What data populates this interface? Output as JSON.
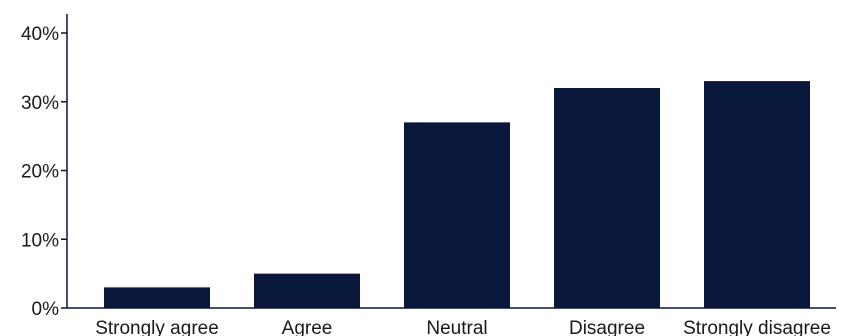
{
  "chart_data": {
    "type": "bar",
    "categories": [
      "Strongly agree",
      "Agree",
      "Neutral",
      "Disagree",
      "Strongly disagree"
    ],
    "values": [
      3,
      5,
      27,
      32,
      33
    ],
    "title": "",
    "xlabel": "",
    "ylabel": "",
    "ylim": [
      0,
      40
    ],
    "yticks": [
      0,
      10,
      20,
      30,
      40
    ],
    "ytick_labels": [
      "0%",
      "10%",
      "20%",
      "30%",
      "40%"
    ],
    "grid": false,
    "colors": {
      "bar": "#08173a",
      "axis": "#08173a"
    }
  }
}
